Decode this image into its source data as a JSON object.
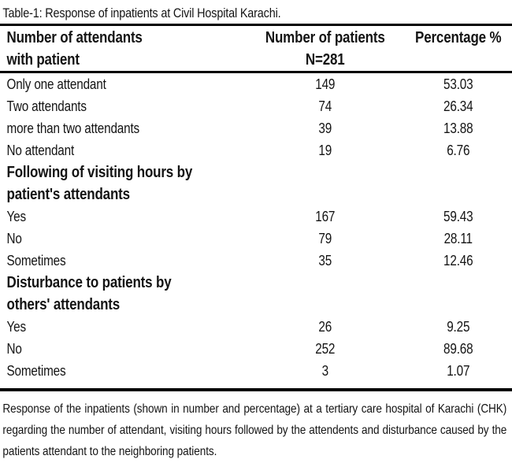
{
  "title": "Table-1: Response of inpatients at Civil Hospital Karachi.",
  "table": {
    "header": {
      "col1_line1": "Number of attendants",
      "col1_line2": "with patient",
      "col2_line1": "Number of patients",
      "col2_line2": "N=281",
      "col3_line1": "Percentage %"
    },
    "rows": [
      {
        "type": "data",
        "label": "Only one attendant",
        "patients": "149",
        "percentage": "53.03"
      },
      {
        "type": "data",
        "label": "Two attendants",
        "patients": "74",
        "percentage": "26.34"
      },
      {
        "type": "data",
        "label": "more than two attendants",
        "patients": "39",
        "percentage": "13.88"
      },
      {
        "type": "data",
        "label": "No attendant",
        "patients": "19",
        "percentage": "6.76"
      },
      {
        "type": "section",
        "line1": "Following of visiting hours by",
        "line2": "patient's attendants"
      },
      {
        "type": "data",
        "label": "Yes",
        "patients": "167",
        "percentage": "59.43"
      },
      {
        "type": "data",
        "label": "No",
        "patients": "79",
        "percentage": "28.11"
      },
      {
        "type": "data",
        "label": "Sometimes",
        "patients": "35",
        "percentage": "12.46"
      },
      {
        "type": "section",
        "line1": "Disturbance to patients by",
        "line2": "others' attendants"
      },
      {
        "type": "data",
        "label": "Yes",
        "patients": "26",
        "percentage": "9.25"
      },
      {
        "type": "data",
        "label": "No",
        "patients": "252",
        "percentage": "89.68"
      },
      {
        "type": "data",
        "label": "Sometimes",
        "patients": "3",
        "percentage": "1.07"
      }
    ],
    "sample_size_total": "281"
  },
  "caption": {
    "text": "Response of the inpatients (shown in number and percentage) at a tertiary care hospital of Karachi (CHK) regarding the number of attendant, visiting hours followed by the attendents and disturbance caused by the patients attendant to the neighboring patients."
  },
  "colors": {
    "background": "#ffffff",
    "text": "#141414",
    "rule": "#000000"
  }
}
